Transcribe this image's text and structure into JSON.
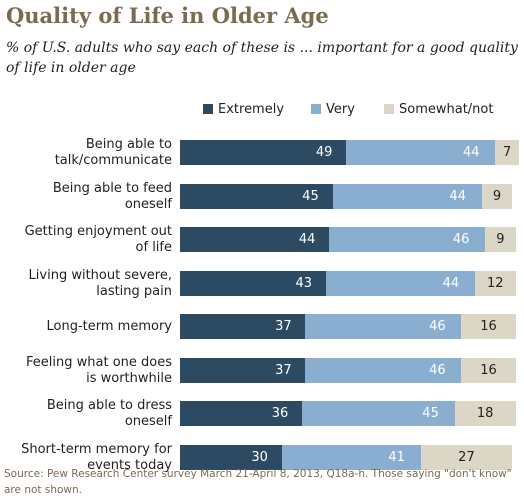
{
  "header": {
    "title": "Quality of Life in Older Age",
    "subtitle": "% of U.S. adults who say each of these is ... important for a good quality of life in older age"
  },
  "colors": {
    "Extremely": "#2d4a63",
    "Very": "#8aaed0",
    "Somewhat/not": "#dcd6c6"
  },
  "chart_data": {
    "type": "bar",
    "orientation": "horizontal",
    "stacked": true,
    "title": "Quality of Life in Older Age",
    "subtitle": "% of U.S. adults who say each of these is ... important for a good quality of life in older age",
    "xlim": [
      0,
      100
    ],
    "grid": false,
    "legend_position": "top-right",
    "categories": [
      "Being able to talk/communicate",
      "Being able to feed oneself",
      "Getting enjoyment out of life",
      "Living without severe, lasting pain",
      "Long-term memory",
      "Feeling what one does is worthwhile",
      "Being able to dress oneself",
      "Short-term memory for events today"
    ],
    "series": [
      {
        "name": "Extremely",
        "values": [
          49,
          45,
          44,
          43,
          37,
          37,
          36,
          30
        ]
      },
      {
        "name": "Very",
        "values": [
          44,
          44,
          46,
          44,
          46,
          46,
          45,
          41
        ]
      },
      {
        "name": "Somewhat/not",
        "values": [
          7,
          9,
          9,
          12,
          16,
          16,
          18,
          27
        ]
      }
    ]
  },
  "footer": {
    "source": "Source: Pew Research Center survey March 21-April 8, 2013, Q18a-h. Those saying \"don't know\" are not shown."
  }
}
